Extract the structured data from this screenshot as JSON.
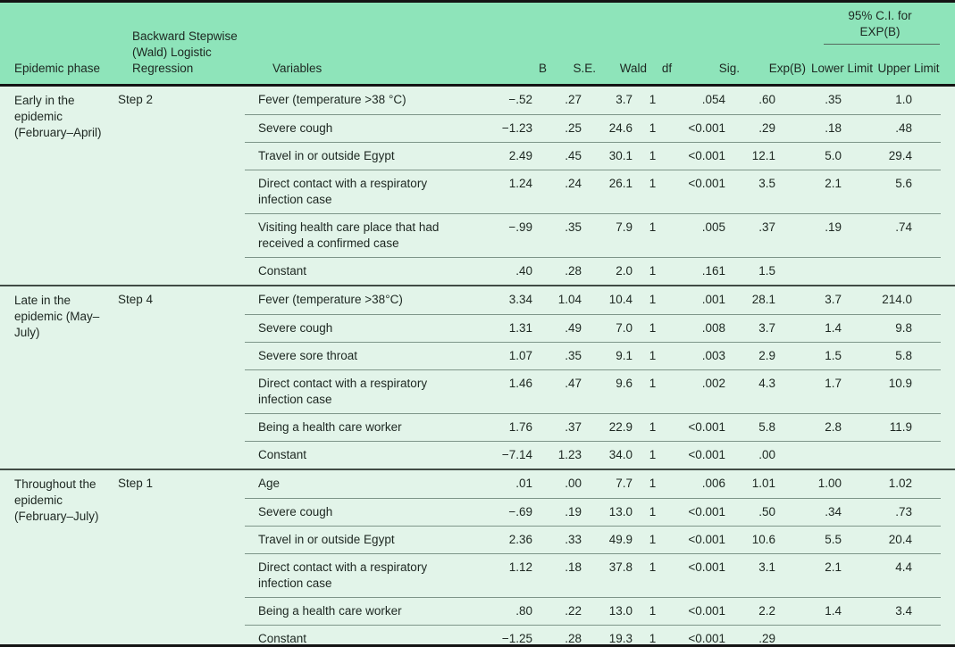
{
  "table": {
    "header": {
      "epidemic_phase": "Epidemic phase",
      "regression": "Backward Stepwise (Wald) Logistic Regression",
      "variables": "Variables",
      "b": "B",
      "se": "S.E.",
      "wald": "Wald",
      "df": "df",
      "sig": "Sig.",
      "exp_b": "Exp(B)",
      "ci_span": "95% C.I. for EXP(B)",
      "lower": "Lower Limit",
      "upper": "Upper Limit"
    },
    "sections": [
      {
        "phase": "Early in the epidemic (February–April)",
        "step": "Step 2",
        "rows": [
          {
            "variable": "Fever (temperature >38 °C)",
            "b": "−.52",
            "se": ".27",
            "wald": "3.7",
            "df": "1",
            "sig": ".054",
            "exp_b": ".60",
            "lower": ".35",
            "upper": "1.0"
          },
          {
            "variable": "Severe cough",
            "b": "−1.23",
            "se": ".25",
            "wald": "24.6",
            "df": "1",
            "sig": "<0.001",
            "exp_b": ".29",
            "lower": ".18",
            "upper": ".48"
          },
          {
            "variable": "Travel in or outside Egypt",
            "b": "2.49",
            "se": ".45",
            "wald": "30.1",
            "df": "1",
            "sig": "<0.001",
            "exp_b": "12.1",
            "lower": "5.0",
            "upper": "29.4"
          },
          {
            "variable": "Direct contact with a respiratory infection case",
            "b": "1.24",
            "se": ".24",
            "wald": "26.1",
            "df": "1",
            "sig": "<0.001",
            "exp_b": "3.5",
            "lower": "2.1",
            "upper": "5.6"
          },
          {
            "variable": "Visiting health care place that had received a confirmed case",
            "b": "−.99",
            "se": ".35",
            "wald": "7.9",
            "df": "1",
            "sig": ".005",
            "exp_b": ".37",
            "lower": ".19",
            "upper": ".74"
          },
          {
            "variable": "Constant",
            "b": ".40",
            "se": ".28",
            "wald": "2.0",
            "df": "1",
            "sig": ".161",
            "exp_b": "1.5",
            "lower": "",
            "upper": ""
          }
        ]
      },
      {
        "phase": "Late in the epidemic (May–July)",
        "step": "Step 4",
        "rows": [
          {
            "variable": "Fever (temperature >38°C)",
            "b": "3.34",
            "se": "1.04",
            "wald": "10.4",
            "df": "1",
            "sig": ".001",
            "exp_b": "28.1",
            "lower": "3.7",
            "upper": "214.0"
          },
          {
            "variable": "Severe cough",
            "b": "1.31",
            "se": ".49",
            "wald": "7.0",
            "df": "1",
            "sig": ".008",
            "exp_b": "3.7",
            "lower": "1.4",
            "upper": "9.8"
          },
          {
            "variable": "Severe sore throat",
            "b": "1.07",
            "se": ".35",
            "wald": "9.1",
            "df": "1",
            "sig": ".003",
            "exp_b": "2.9",
            "lower": "1.5",
            "upper": "5.8"
          },
          {
            "variable": "Direct contact with a respiratory infection case",
            "b": "1.46",
            "se": ".47",
            "wald": "9.6",
            "df": "1",
            "sig": ".002",
            "exp_b": "4.3",
            "lower": "1.7",
            "upper": "10.9"
          },
          {
            "variable": "Being a health care worker",
            "b": "1.76",
            "se": ".37",
            "wald": "22.9",
            "df": "1",
            "sig": "<0.001",
            "exp_b": "5.8",
            "lower": "2.8",
            "upper": "11.9"
          },
          {
            "variable": "Constant",
            "b": "−7.14",
            "se": "1.23",
            "wald": "34.0",
            "df": "1",
            "sig": "<0.001",
            "exp_b": ".00",
            "lower": "",
            "upper": ""
          }
        ]
      },
      {
        "phase": "Throughout the epidemic (February–July)",
        "step": "Step 1",
        "rows": [
          {
            "variable": "Age",
            "b": ".01",
            "se": ".00",
            "wald": "7.7",
            "df": "1",
            "sig": ".006",
            "exp_b": "1.01",
            "lower": "1.00",
            "upper": "1.02"
          },
          {
            "variable": "Severe cough",
            "b": "−.69",
            "se": ".19",
            "wald": "13.0",
            "df": "1",
            "sig": "<0.001",
            "exp_b": ".50",
            "lower": ".34",
            "upper": ".73"
          },
          {
            "variable": "Travel in or outside Egypt",
            "b": "2.36",
            "se": ".33",
            "wald": "49.9",
            "df": "1",
            "sig": "<0.001",
            "exp_b": "10.6",
            "lower": "5.5",
            "upper": "20.4"
          },
          {
            "variable": "Direct contact with a respiratory infection case",
            "b": "1.12",
            "se": ".18",
            "wald": "37.8",
            "df": "1",
            "sig": "<0.001",
            "exp_b": "3.1",
            "lower": "2.1",
            "upper": "4.4"
          },
          {
            "variable": "Being a health care worker",
            "b": ".80",
            "se": ".22",
            "wald": "13.0",
            "df": "1",
            "sig": "<0.001",
            "exp_b": "2.2",
            "lower": "1.4",
            "upper": "3.4"
          },
          {
            "variable": "Constant",
            "b": "−1.25",
            "se": ".28",
            "wald": "19.3",
            "df": "1",
            "sig": "<0.001",
            "exp_b": ".29",
            "lower": "",
            "upper": ""
          }
        ]
      }
    ]
  },
  "colors": {
    "header_bg": "#8ee4ba",
    "body_bg": "#e2f4e9",
    "rule_dark": "#141414",
    "section_rule": "#414b45",
    "row_rule": "#7e9589",
    "text": "#1d2721"
  }
}
